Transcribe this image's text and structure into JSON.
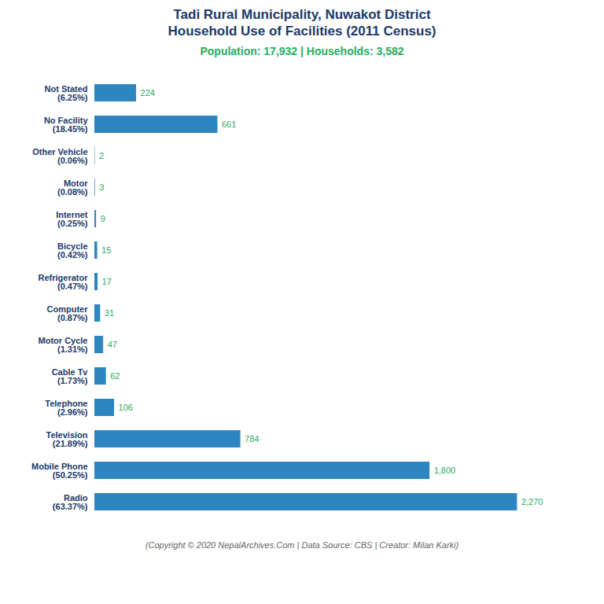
{
  "chart_data": {
    "type": "bar",
    "orientation": "horizontal",
    "title": "Tadi Rural Municipality, Nuwakot District\nHousehold Use of Facilities (2011 Census)",
    "subtitle": "Population: 17,932 | Households: 3,582",
    "caption": "(Copyright © 2020 NepalArchives.Com | Data Source: CBS | Creator: Milan Karki)",
    "categories": [
      "Not Stated\n(6.25%)",
      "No Facility\n(18.45%)",
      "Other Vehicle\n(0.06%)",
      "Motor\n(0.08%)",
      "Internet\n(0.25%)",
      "Bicycle\n(0.42%)",
      "Refrigerator\n(0.47%)",
      "Computer\n(0.87%)",
      "Motor Cycle\n(1.31%)",
      "Cable Tv\n(1.73%)",
      "Telephone\n(2.96%)",
      "Television\n(21.89%)",
      "Mobile Phone\n(50.25%)",
      "Radio\n(63.37%)"
    ],
    "values": [
      224,
      661,
      2,
      3,
      9,
      15,
      17,
      31,
      47,
      62,
      106,
      784,
      1800,
      2270
    ],
    "value_labels": [
      "224",
      "661",
      "2",
      "3",
      "9",
      "15",
      "17",
      "31",
      "47",
      "62",
      "106",
      "784",
      "1,800",
      "2,270"
    ],
    "color": "#2e86c1",
    "xlim": [
      0,
      2610.5
    ],
    "data_labels": true,
    "tick_labels": "y",
    "grid": false
  }
}
